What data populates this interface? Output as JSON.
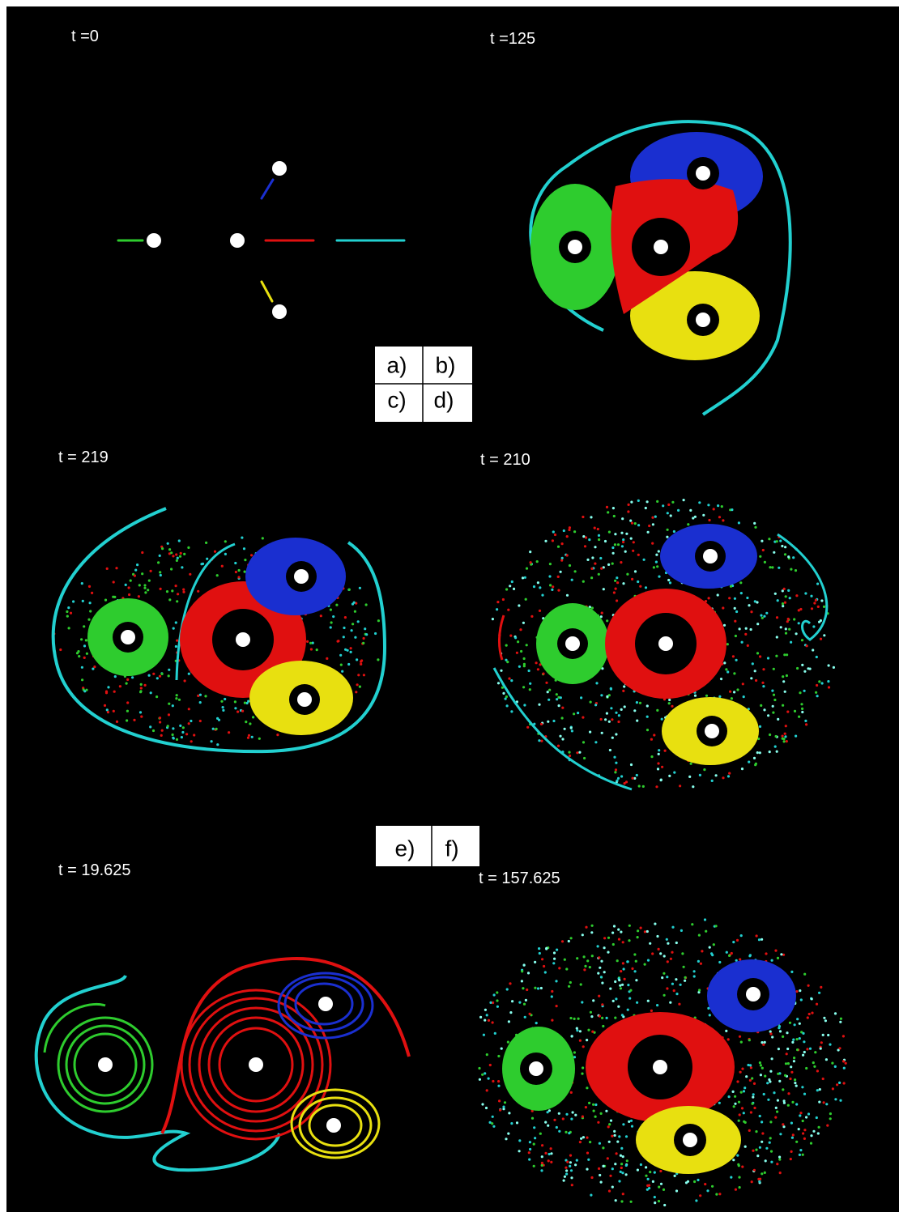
{
  "panels": [
    {
      "time": "t =0"
    },
    {
      "time": "t =125"
    },
    {
      "time": "t = 219"
    },
    {
      "time": "t = 210"
    },
    {
      "time": "t = 19.625"
    },
    {
      "time": "t = 157.625"
    }
  ],
  "key_tables": [
    {
      "rows": [
        [
          "a)",
          "b)"
        ],
        [
          "c)",
          "d)"
        ]
      ]
    },
    {
      "rows": [
        [
          "e)",
          "f)"
        ]
      ]
    }
  ]
}
